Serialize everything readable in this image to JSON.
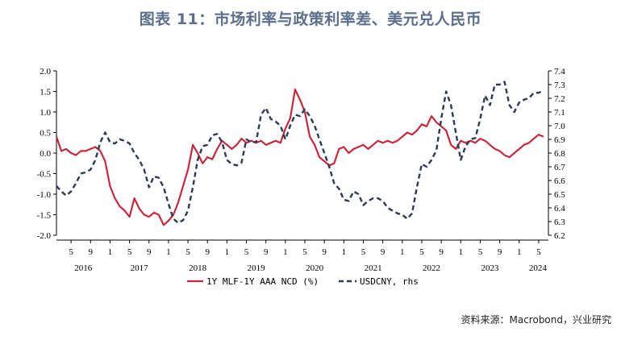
{
  "header": {
    "title": "图表 11：市场利率与政策利率差、美元兑人民币"
  },
  "source": "资料来源：Macrobond，兴业研究",
  "colors": {
    "spread": "#c8283c",
    "usdcny": "#2d3a55"
  },
  "chart_data": {
    "type": "line",
    "x_axis": {
      "month_ticks": [
        "5",
        "9",
        "1",
        "5",
        "9",
        "1",
        "5",
        "9",
        "1",
        "5",
        "9",
        "1",
        "5",
        "9",
        "1",
        "5",
        "9",
        "1",
        "5",
        "9",
        "1",
        "5",
        "9",
        "1",
        "5"
      ],
      "year_labels": [
        "2016",
        "2017",
        "2018",
        "2019",
        "2020",
        "2021",
        "2022",
        "2023",
        "2024"
      ],
      "range": [
        "2016-02",
        "2024-07"
      ]
    },
    "y_left": {
      "ticks": [
        "2.0",
        "1.5",
        "1.0",
        "0.5",
        "0.0",
        "-0.5",
        "-1.0",
        "-1.5",
        "-2.0"
      ],
      "ylim": [
        -2.0,
        2.0
      ]
    },
    "y_right": {
      "ticks": [
        "7.4",
        "7.3",
        "7.2",
        "7.1",
        "7.0",
        "6.9",
        "6.8",
        "6.7",
        "6.6",
        "6.5",
        "6.4",
        "6.3",
        "6.2"
      ],
      "ylim": [
        6.2,
        7.4
      ]
    },
    "legend": {
      "placement": "bottom-center"
    },
    "series": [
      {
        "name": "1Y MLF-1Y AAA NCD (%)",
        "axis": "left",
        "style": "solid",
        "points": [
          [
            "2016-02",
            0.4
          ],
          [
            "2016-03",
            0.05
          ],
          [
            "2016-04",
            0.1
          ],
          [
            "2016-05",
            0.0
          ],
          [
            "2016-06",
            -0.05
          ],
          [
            "2016-07",
            0.05
          ],
          [
            "2016-08",
            0.05
          ],
          [
            "2016-09",
            0.1
          ],
          [
            "2016-10",
            0.15
          ],
          [
            "2016-11",
            0.05
          ],
          [
            "2016-12",
            -0.2
          ],
          [
            "2017-01",
            -0.8
          ],
          [
            "2017-02",
            -1.1
          ],
          [
            "2017-03",
            -1.3
          ],
          [
            "2017-04",
            -1.4
          ],
          [
            "2017-05",
            -1.55
          ],
          [
            "2017-06",
            -1.1
          ],
          [
            "2017-07",
            -1.35
          ],
          [
            "2017-08",
            -1.5
          ],
          [
            "2017-09",
            -1.55
          ],
          [
            "2017-10",
            -1.45
          ],
          [
            "2017-11",
            -1.5
          ],
          [
            "2017-12",
            -1.75
          ],
          [
            "2018-01",
            -1.65
          ],
          [
            "2018-02",
            -1.5
          ],
          [
            "2018-03",
            -1.2
          ],
          [
            "2018-04",
            -0.8
          ],
          [
            "2018-05",
            -0.4
          ],
          [
            "2018-06",
            0.2
          ],
          [
            "2018-07",
            0.0
          ],
          [
            "2018-08",
            -0.25
          ],
          [
            "2018-09",
            -0.1
          ],
          [
            "2018-10",
            -0.15
          ],
          [
            "2018-11",
            0.1
          ],
          [
            "2018-12",
            0.3
          ],
          [
            "2019-01",
            0.2
          ],
          [
            "2019-02",
            0.1
          ],
          [
            "2019-03",
            0.2
          ],
          [
            "2019-04",
            0.35
          ],
          [
            "2019-05",
            0.25
          ],
          [
            "2019-06",
            0.3
          ],
          [
            "2019-07",
            0.25
          ],
          [
            "2019-08",
            0.3
          ],
          [
            "2019-09",
            0.2
          ],
          [
            "2019-10",
            0.25
          ],
          [
            "2019-11",
            0.3
          ],
          [
            "2019-12",
            0.25
          ],
          [
            "2020-01",
            0.6
          ],
          [
            "2020-02",
            0.85
          ],
          [
            "2020-03",
            1.55
          ],
          [
            "2020-04",
            1.3
          ],
          [
            "2020-05",
            1.0
          ],
          [
            "2020-06",
            0.4
          ],
          [
            "2020-07",
            0.2
          ],
          [
            "2020-08",
            -0.1
          ],
          [
            "2020-09",
            -0.2
          ],
          [
            "2020-10",
            -0.3
          ],
          [
            "2020-11",
            -0.25
          ],
          [
            "2020-12",
            0.1
          ],
          [
            "2021-01",
            0.15
          ],
          [
            "2021-02",
            0.0
          ],
          [
            "2021-03",
            0.1
          ],
          [
            "2021-04",
            0.15
          ],
          [
            "2021-05",
            0.2
          ],
          [
            "2021-06",
            0.1
          ],
          [
            "2021-07",
            0.2
          ],
          [
            "2021-08",
            0.3
          ],
          [
            "2021-09",
            0.25
          ],
          [
            "2021-10",
            0.3
          ],
          [
            "2021-11",
            0.25
          ],
          [
            "2021-12",
            0.3
          ],
          [
            "2022-01",
            0.4
          ],
          [
            "2022-02",
            0.5
          ],
          [
            "2022-03",
            0.45
          ],
          [
            "2022-04",
            0.55
          ],
          [
            "2022-05",
            0.7
          ],
          [
            "2022-06",
            0.65
          ],
          [
            "2022-07",
            0.9
          ],
          [
            "2022-08",
            0.75
          ],
          [
            "2022-09",
            0.65
          ],
          [
            "2022-10",
            0.55
          ],
          [
            "2022-11",
            0.2
          ],
          [
            "2022-12",
            0.1
          ],
          [
            "2023-01",
            0.3
          ],
          [
            "2023-02",
            0.25
          ],
          [
            "2023-03",
            0.3
          ],
          [
            "2023-04",
            0.25
          ],
          [
            "2023-05",
            0.35
          ],
          [
            "2023-06",
            0.3
          ],
          [
            "2023-07",
            0.2
          ],
          [
            "2023-08",
            0.1
          ],
          [
            "2023-09",
            0.05
          ],
          [
            "2023-10",
            -0.05
          ],
          [
            "2023-11",
            -0.1
          ],
          [
            "2023-12",
            0.0
          ],
          [
            "2024-01",
            0.1
          ],
          [
            "2024-02",
            0.2
          ],
          [
            "2024-03",
            0.25
          ],
          [
            "2024-04",
            0.35
          ],
          [
            "2024-05",
            0.45
          ],
          [
            "2024-06",
            0.4
          ]
        ]
      },
      {
        "name": "USDCNY, rhs",
        "axis": "right",
        "style": "dashed",
        "points": [
          [
            "2016-02",
            6.56
          ],
          [
            "2016-03",
            6.52
          ],
          [
            "2016-04",
            6.49
          ],
          [
            "2016-05",
            6.52
          ],
          [
            "2016-06",
            6.58
          ],
          [
            "2016-07",
            6.65
          ],
          [
            "2016-08",
            6.66
          ],
          [
            "2016-09",
            6.68
          ],
          [
            "2016-10",
            6.75
          ],
          [
            "2016-11",
            6.88
          ],
          [
            "2016-12",
            6.95
          ],
          [
            "2017-01",
            6.88
          ],
          [
            "2017-02",
            6.87
          ],
          [
            "2017-03",
            6.9
          ],
          [
            "2017-04",
            6.89
          ],
          [
            "2017-05",
            6.87
          ],
          [
            "2017-06",
            6.8
          ],
          [
            "2017-07",
            6.75
          ],
          [
            "2017-08",
            6.68
          ],
          [
            "2017-09",
            6.55
          ],
          [
            "2017-10",
            6.63
          ],
          [
            "2017-11",
            6.62
          ],
          [
            "2017-12",
            6.55
          ],
          [
            "2018-01",
            6.43
          ],
          [
            "2018-02",
            6.32
          ],
          [
            "2018-03",
            6.29
          ],
          [
            "2018-04",
            6.31
          ],
          [
            "2018-05",
            6.38
          ],
          [
            "2018-06",
            6.55
          ],
          [
            "2018-07",
            6.75
          ],
          [
            "2018-08",
            6.85
          ],
          [
            "2018-09",
            6.86
          ],
          [
            "2018-10",
            6.93
          ],
          [
            "2018-11",
            6.94
          ],
          [
            "2018-12",
            6.88
          ],
          [
            "2019-01",
            6.75
          ],
          [
            "2019-02",
            6.72
          ],
          [
            "2019-03",
            6.71
          ],
          [
            "2019-04",
            6.73
          ],
          [
            "2019-05",
            6.9
          ],
          [
            "2019-06",
            6.88
          ],
          [
            "2019-07",
            6.88
          ],
          [
            "2019-08",
            7.08
          ],
          [
            "2019-09",
            7.13
          ],
          [
            "2019-10",
            7.05
          ],
          [
            "2019-11",
            7.03
          ],
          [
            "2019-12",
            7.0
          ],
          [
            "2020-01",
            6.9
          ],
          [
            "2020-02",
            7.0
          ],
          [
            "2020-03",
            7.08
          ],
          [
            "2020-04",
            7.07
          ],
          [
            "2020-05",
            7.12
          ],
          [
            "2020-06",
            7.07
          ],
          [
            "2020-07",
            7.0
          ],
          [
            "2020-08",
            6.9
          ],
          [
            "2020-09",
            6.8
          ],
          [
            "2020-10",
            6.7
          ],
          [
            "2020-11",
            6.58
          ],
          [
            "2020-12",
            6.54
          ],
          [
            "2021-01",
            6.46
          ],
          [
            "2021-02",
            6.45
          ],
          [
            "2021-03",
            6.52
          ],
          [
            "2021-04",
            6.5
          ],
          [
            "2021-05",
            6.42
          ],
          [
            "2021-06",
            6.45
          ],
          [
            "2021-07",
            6.47
          ],
          [
            "2021-08",
            6.47
          ],
          [
            "2021-09",
            6.45
          ],
          [
            "2021-10",
            6.4
          ],
          [
            "2021-11",
            6.38
          ],
          [
            "2021-12",
            6.36
          ],
          [
            "2022-01",
            6.35
          ],
          [
            "2022-02",
            6.32
          ],
          [
            "2022-03",
            6.36
          ],
          [
            "2022-04",
            6.55
          ],
          [
            "2022-05",
            6.72
          ],
          [
            "2022-06",
            6.7
          ],
          [
            "2022-07",
            6.75
          ],
          [
            "2022-08",
            6.82
          ],
          [
            "2022-09",
            7.05
          ],
          [
            "2022-10",
            7.25
          ],
          [
            "2022-11",
            7.15
          ],
          [
            "2022-12",
            6.95
          ],
          [
            "2023-01",
            6.75
          ],
          [
            "2023-02",
            6.85
          ],
          [
            "2023-03",
            6.9
          ],
          [
            "2023-04",
            6.91
          ],
          [
            "2023-05",
            7.05
          ],
          [
            "2023-06",
            7.22
          ],
          [
            "2023-07",
            7.15
          ],
          [
            "2023-08",
            7.3
          ],
          [
            "2023-09",
            7.3
          ],
          [
            "2023-10",
            7.32
          ],
          [
            "2023-11",
            7.15
          ],
          [
            "2023-12",
            7.1
          ],
          [
            "2024-01",
            7.17
          ],
          [
            "2024-02",
            7.19
          ],
          [
            "2024-03",
            7.2
          ],
          [
            "2024-04",
            7.24
          ],
          [
            "2024-05",
            7.24
          ],
          [
            "2024-06",
            7.26
          ]
        ]
      }
    ]
  }
}
